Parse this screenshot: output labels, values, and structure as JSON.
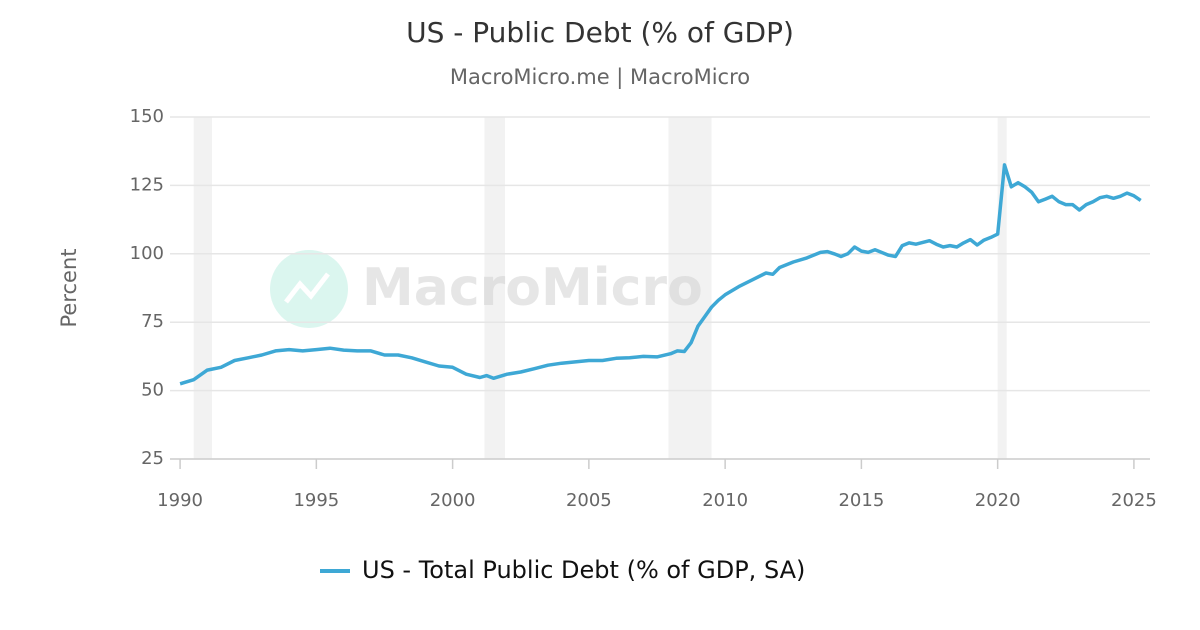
{
  "chart_data": {
    "type": "line",
    "title": "US - Public Debt (% of GDP)",
    "subtitle": "MacroMicro.me | MacroMicro",
    "watermark": "MacroMicro",
    "y_label": "Percent",
    "x": [
      1990.0,
      1990.5,
      1991.0,
      1991.5,
      1992.0,
      1992.5,
      1993.0,
      1993.5,
      1994.0,
      1994.5,
      1995.0,
      1995.5,
      1996.0,
      1996.5,
      1997.0,
      1997.5,
      1998.0,
      1998.5,
      1999.0,
      1999.5,
      2000.0,
      2000.5,
      2001.0,
      2001.25,
      2001.5,
      2002.0,
      2002.5,
      2003.0,
      2003.5,
      2004.0,
      2004.5,
      2005.0,
      2005.5,
      2006.0,
      2006.5,
      2007.0,
      2007.5,
      2008.0,
      2008.25,
      2008.5,
      2008.75,
      2009.0,
      2009.25,
      2009.5,
      2009.75,
      2010.0,
      2010.5,
      2011.0,
      2011.5,
      2011.75,
      2012.0,
      2012.5,
      2013.0,
      2013.5,
      2013.75,
      2014.0,
      2014.25,
      2014.5,
      2014.75,
      2015.0,
      2015.25,
      2015.5,
      2016.0,
      2016.25,
      2016.5,
      2016.75,
      2017.0,
      2017.5,
      2017.75,
      2018.0,
      2018.25,
      2018.5,
      2018.75,
      2019.0,
      2019.25,
      2019.5,
      2019.75,
      2020.0,
      2020.25,
      2020.5,
      2020.75,
      2021.0,
      2021.25,
      2021.5,
      2021.75,
      2022.0,
      2022.25,
      2022.5,
      2022.75,
      2023.0,
      2023.25,
      2023.5,
      2023.75,
      2024.0,
      2024.25,
      2024.5,
      2024.75,
      2025.0,
      2025.25
    ],
    "series": [
      {
        "name": "US - Total Public Debt (% of GDP, SA)",
        "color": "#3ea8d5",
        "values": [
          52.5,
          54,
          57.5,
          58.5,
          61,
          62,
          63,
          64.5,
          65,
          64.5,
          65,
          65.5,
          64.8,
          64.5,
          64.5,
          63,
          63,
          62,
          60.5,
          59,
          58.5,
          56,
          54.8,
          55.5,
          54.5,
          56,
          56.8,
          58,
          59.3,
          60,
          60.5,
          61,
          61,
          61.8,
          62,
          62.5,
          62.3,
          63.5,
          64.5,
          64.3,
          67.5,
          73.5,
          77,
          80.5,
          83,
          85,
          88,
          90.5,
          93,
          92.5,
          95,
          97,
          98.5,
          100.5,
          100.8,
          100,
          99,
          100,
          102.5,
          101,
          100.5,
          101.5,
          99.5,
          99,
          103,
          104,
          103.5,
          104.8,
          103.5,
          102.5,
          103,
          102.5,
          104,
          105.2,
          103.2,
          105,
          106,
          107.2,
          132.5,
          124.5,
          126,
          124.5,
          122.5,
          119,
          120,
          121,
          119,
          118,
          118,
          116,
          118,
          119,
          120.5,
          121,
          120.3,
          121,
          122.2,
          121.2,
          119.5
        ]
      }
    ],
    "shaded_ranges": [
      [
        1990.5,
        1991.17
      ],
      [
        2001.17,
        2001.92
      ],
      [
        2007.92,
        2009.5
      ],
      [
        2020.0,
        2020.33
      ]
    ],
    "shade_color": "#f2f2f2",
    "xlim": [
      1989.63,
      2025.59
    ],
    "xticks": [
      1990,
      1995,
      2000,
      2005,
      2010,
      2015,
      2020,
      2025
    ],
    "ylim": [
      25,
      150
    ],
    "yticks": [
      25,
      50,
      75,
      100,
      125,
      150
    ],
    "grid": true
  }
}
